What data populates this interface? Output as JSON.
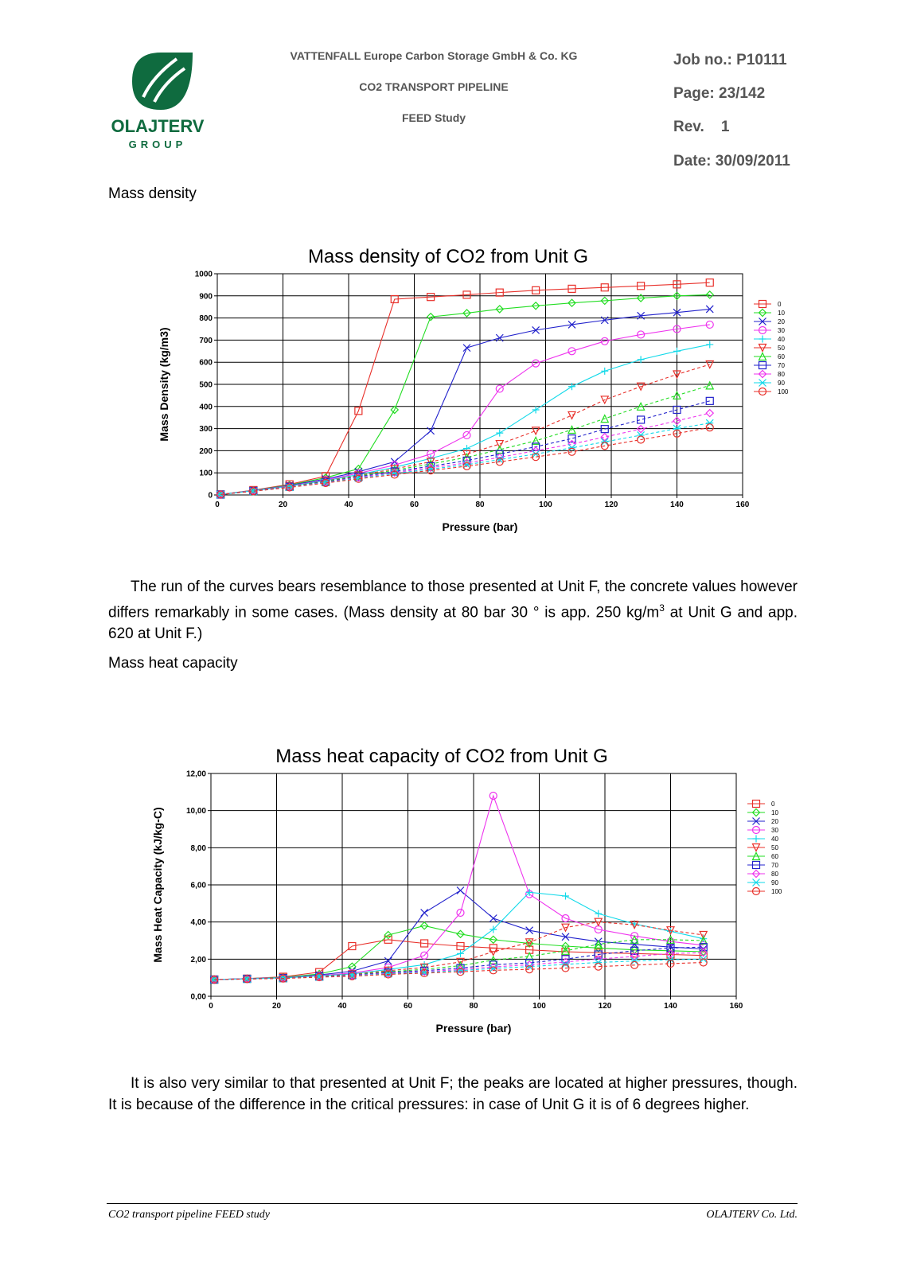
{
  "header": {
    "logo_name": "OLAJTERV",
    "logo_sub": "GROUP",
    "company": "VATTENFALL Europe Carbon Storage GmbH & Co. KG",
    "project": "CO2 TRANSPORT PIPELINE",
    "study": "FEED Study",
    "job": "Job no.: P10111",
    "page": "Page:  23/142",
    "rev": "Rev.    1",
    "date": "Date: 30/09/2011"
  },
  "sections": {
    "mass_density": "Mass density",
    "heat_capacity": "Mass heat capacity"
  },
  "paragraphs": {
    "p1_a": "The run of the curves bears resemblance to those presented at Unit F, the concrete values however differs remarkably in some cases. (Mass density at 80 bar 30 ° is app. 250 kg/m",
    "p1_sup": "3",
    "p1_b": " at Unit G and app. 620 at Unit F.)",
    "p2": "It is also very similar to that presented at Unit F; the peaks are located at higher pressures, though. It is because of the difference in the critical pressures: in case of Unit G it is of 6 degrees higher."
  },
  "footer": {
    "left": "CO2 transport pipeline FEED study",
    "right": "OLAJTERV Co. Ltd."
  },
  "colors": {
    "series": [
      "#e8302a",
      "#22dd22",
      "#2222cc",
      "#ee33ee",
      "#11d9e9",
      "#e8302a",
      "#22dd22",
      "#2222cc",
      "#ee33ee",
      "#11d9e9",
      "#e8302a"
    ],
    "logo_green": "#0f6b3f"
  },
  "chart_data": [
    {
      "type": "line",
      "title": "Mass density of CO2 from Unit G",
      "xlabel": "Pressure (bar)",
      "ylabel": "Mass Density (kg/m3)",
      "xlim": [
        0,
        160
      ],
      "ylim": [
        0,
        1000
      ],
      "xticks": [
        "0",
        "20",
        "40",
        "60",
        "80",
        "100",
        "120",
        "140",
        "160"
      ],
      "yticks": [
        "0",
        "100",
        "200",
        "300",
        "400",
        "500",
        "600",
        "700",
        "800",
        "900",
        "1000"
      ],
      "grid": true,
      "legend": "right",
      "x": [
        1,
        11,
        22,
        33,
        43,
        54,
        65,
        76,
        86,
        97,
        108,
        118,
        129,
        140,
        150
      ],
      "series": [
        {
          "name": "0",
          "values": [
            2,
            22,
            48,
            85,
            380,
            885,
            895,
            905,
            915,
            925,
            932,
            938,
            945,
            952,
            960
          ]
        },
        {
          "name": "10",
          "values": [
            2,
            21,
            45,
            78,
            118,
            385,
            805,
            822,
            840,
            855,
            868,
            878,
            890,
            900,
            905
          ]
        },
        {
          "name": "20",
          "values": [
            2,
            20,
            43,
            72,
            105,
            150,
            290,
            665,
            710,
            745,
            770,
            790,
            810,
            825,
            840
          ]
        },
        {
          "name": "30",
          "values": [
            2,
            20,
            41,
            68,
            98,
            135,
            185,
            270,
            480,
            595,
            650,
            695,
            725,
            750,
            770
          ]
        },
        {
          "name": "40",
          "values": [
            2,
            19,
            40,
            65,
            92,
            125,
            165,
            210,
            280,
            385,
            490,
            560,
            612,
            650,
            680
          ]
        },
        {
          "name": "50",
          "values": [
            2,
            19,
            39,
            63,
            88,
            118,
            150,
            185,
            230,
            290,
            360,
            430,
            490,
            545,
            590
          ]
        },
        {
          "name": "60",
          "values": [
            2,
            18,
            38,
            61,
            85,
            112,
            140,
            170,
            205,
            245,
            295,
            345,
            400,
            450,
            495
          ]
        },
        {
          "name": "70",
          "values": [
            2,
            18,
            37,
            59,
            82,
            106,
            130,
            155,
            185,
            218,
            255,
            298,
            340,
            385,
            425
          ]
        },
        {
          "name": "80",
          "values": [
            2,
            18,
            36,
            57,
            79,
            101,
            123,
            145,
            170,
            200,
            230,
            262,
            298,
            335,
            370
          ]
        },
        {
          "name": "90",
          "values": [
            2,
            17,
            35,
            56,
            76,
            97,
            117,
            137,
            160,
            185,
            213,
            240,
            270,
            300,
            325
          ]
        },
        {
          "name": "100",
          "values": [
            2,
            17,
            34,
            54,
            73,
            92,
            111,
            130,
            150,
            172,
            195,
            222,
            250,
            278,
            305
          ]
        }
      ]
    },
    {
      "type": "line",
      "title": "Mass heat capacity of CO2 from Unit G",
      "xlabel": "Pressure (bar)",
      "ylabel": "Mass Heat Capacity (kJ/kg-C)",
      "xlim": [
        0,
        160
      ],
      "ylim": [
        0,
        12
      ],
      "xticks": [
        "0",
        "20",
        "40",
        "60",
        "80",
        "100",
        "120",
        "140",
        "160"
      ],
      "yticks": [
        "0,00",
        "2,00",
        "4,00",
        "6,00",
        "8,00",
        "10,00",
        "12,00"
      ],
      "grid": true,
      "legend": "right",
      "x": [
        1,
        11,
        22,
        33,
        43,
        54,
        65,
        76,
        86,
        97,
        108,
        118,
        129,
        140,
        150
      ],
      "series": [
        {
          "name": "0",
          "values": [
            0.9,
            0.95,
            1.05,
            1.3,
            2.7,
            3.05,
            2.85,
            2.7,
            2.6,
            2.5,
            2.4,
            2.35,
            2.3,
            2.25,
            2.2
          ]
        },
        {
          "name": "10",
          "values": [
            0.9,
            0.95,
            1.02,
            1.2,
            1.6,
            3.3,
            3.8,
            3.35,
            3.05,
            2.85,
            2.7,
            2.6,
            2.5,
            2.45,
            2.4
          ]
        },
        {
          "name": "20",
          "values": [
            0.9,
            0.95,
            1.0,
            1.15,
            1.35,
            1.9,
            4.5,
            5.7,
            4.2,
            3.55,
            3.2,
            2.95,
            2.8,
            2.65,
            2.55
          ]
        },
        {
          "name": "30",
          "values": [
            0.9,
            0.95,
            1.0,
            1.12,
            1.25,
            1.55,
            2.2,
            4.5,
            10.8,
            5.5,
            4.2,
            3.6,
            3.25,
            2.95,
            2.75
          ]
        },
        {
          "name": "40",
          "values": [
            0.9,
            0.94,
            0.99,
            1.1,
            1.2,
            1.45,
            1.7,
            2.3,
            3.6,
            5.6,
            5.4,
            4.45,
            3.9,
            3.5,
            3.1
          ]
        },
        {
          "name": "50",
          "values": [
            0.9,
            0.94,
            0.99,
            1.08,
            1.18,
            1.38,
            1.55,
            1.85,
            2.4,
            2.9,
            3.7,
            4.0,
            3.85,
            3.55,
            3.3
          ]
        },
        {
          "name": "60",
          "values": [
            0.9,
            0.94,
            0.98,
            1.07,
            1.16,
            1.32,
            1.45,
            1.65,
            1.95,
            2.15,
            2.45,
            2.8,
            3.05,
            3.05,
            3.0
          ]
        },
        {
          "name": "70",
          "values": [
            0.9,
            0.94,
            0.98,
            1.06,
            1.14,
            1.28,
            1.38,
            1.52,
            1.7,
            1.8,
            2.0,
            2.25,
            2.45,
            2.6,
            2.65
          ]
        },
        {
          "name": "80",
          "values": [
            0.9,
            0.93,
            0.97,
            1.05,
            1.12,
            1.24,
            1.33,
            1.44,
            1.58,
            1.7,
            1.85,
            2.0,
            2.15,
            2.3,
            2.35
          ]
        },
        {
          "name": "90",
          "values": [
            0.9,
            0.93,
            0.97,
            1.04,
            1.1,
            1.21,
            1.29,
            1.38,
            1.5,
            1.6,
            1.72,
            1.82,
            1.9,
            1.97,
            2.0
          ]
        },
        {
          "name": "100",
          "values": [
            0.9,
            0.93,
            0.96,
            1.03,
            1.08,
            1.18,
            1.25,
            1.32,
            1.4,
            1.45,
            1.52,
            1.6,
            1.68,
            1.76,
            1.82
          ]
        }
      ]
    }
  ]
}
